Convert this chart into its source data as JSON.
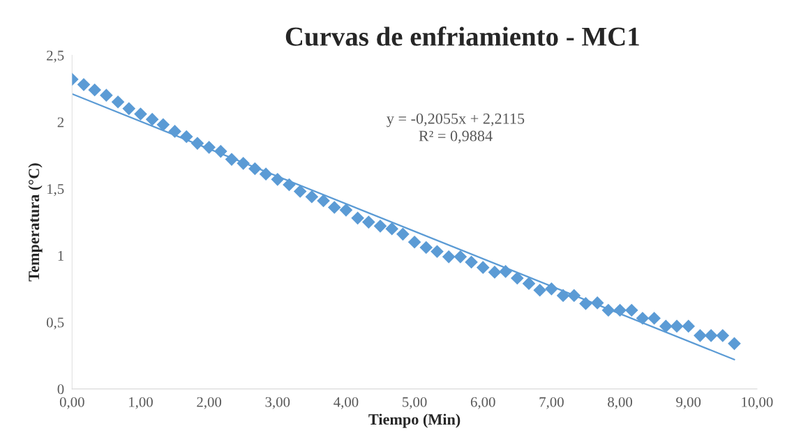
{
  "chart_data": {
    "type": "scatter",
    "title": "Curvas de enfriamiento - MC1",
    "xlabel": "Tiempo (Min)",
    "ylabel": "Temperatura (°C)",
    "marker": "diamond",
    "grid": false,
    "legend": false,
    "xlim": [
      0,
      10
    ],
    "ylim": [
      0,
      2.5
    ],
    "xticks": [
      {
        "value": 0,
        "label": "0,00"
      },
      {
        "value": 1,
        "label": "1,00"
      },
      {
        "value": 2,
        "label": "2,00"
      },
      {
        "value": 3,
        "label": "3,00"
      },
      {
        "value": 4,
        "label": "4,00"
      },
      {
        "value": 5,
        "label": "5,00"
      },
      {
        "value": 6,
        "label": "6,00"
      },
      {
        "value": 7,
        "label": "7,00"
      },
      {
        "value": 8,
        "label": "8,00"
      },
      {
        "value": 9,
        "label": "9,00"
      },
      {
        "value": 10,
        "label": "10,00"
      }
    ],
    "yticks": [
      0,
      {
        "value": 0.5,
        "label": "0,5"
      },
      1,
      {
        "value": 1.5,
        "label": "1,5"
      },
      2,
      {
        "value": 2.5,
        "label": "2,5"
      }
    ],
    "annotations": [
      "y = -0,2055x + 2,2115\nR² = 0,9884"
    ],
    "series": [
      {
        "color": "#5b9bd5",
        "x": [
          0,
          0.17,
          0.33,
          0.5,
          0.67,
          0.83,
          1.0,
          1.17,
          1.33,
          1.5,
          1.67,
          1.83,
          2.0,
          2.17,
          2.33,
          2.5,
          2.67,
          2.83,
          3.0,
          3.17,
          3.33,
          3.5,
          3.67,
          3.83,
          4.0,
          4.17,
          4.33,
          4.5,
          4.67,
          4.83,
          5.0,
          5.17,
          5.33,
          5.5,
          5.67,
          5.83,
          6.0,
          6.17,
          6.33,
          6.5,
          6.67,
          6.83,
          7.0,
          7.17,
          7.33,
          7.5,
          7.67,
          7.83,
          8.0,
          8.17,
          8.33,
          8.5,
          8.67,
          8.83,
          9.0,
          9.17,
          9.33,
          9.5,
          9.67
        ],
        "values": [
          2.32,
          2.28,
          2.24,
          2.2,
          2.15,
          2.1,
          2.06,
          2.02,
          1.98,
          1.93,
          1.89,
          1.84,
          1.81,
          1.78,
          1.72,
          1.69,
          1.65,
          1.61,
          1.57,
          1.53,
          1.48,
          1.44,
          1.41,
          1.36,
          1.34,
          1.28,
          1.25,
          1.22,
          1.2,
          1.16,
          1.1,
          1.06,
          1.03,
          0.99,
          0.99,
          0.95,
          0.91,
          0.875,
          0.88,
          0.83,
          0.79,
          0.74,
          0.75,
          0.7,
          0.7,
          0.64,
          0.645,
          0.59,
          0.59,
          0.59,
          0.53,
          0.53,
          0.47,
          0.47,
          0.47,
          0.4,
          0.4,
          0.4,
          0.34
        ]
      },
      {
        "type": "line",
        "color": "#5b9bd5",
        "line_style": "solid",
        "marker": "none",
        "x": [
          0,
          9.67
        ],
        "values": [
          2.21,
          0.22
        ]
      }
    ]
  }
}
